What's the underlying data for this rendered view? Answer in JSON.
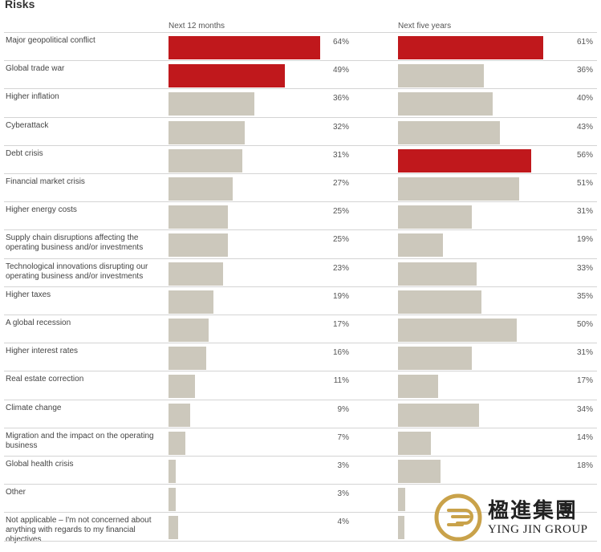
{
  "header": {
    "title": "Risks",
    "col_short": "Next 12 months",
    "col_long": "Next five years"
  },
  "chart_data": {
    "type": "bar",
    "title": "Risks",
    "categories": [
      "Major geopolitical conflict",
      "Global trade war",
      "Higher inflation",
      "Cyberattack",
      "Debt crisis",
      "Financial market crisis",
      "Higher energy costs",
      "Supply chain disruptions affecting the operating business and/or investments",
      "Technological innovations disrupting our operating business and/or investments",
      "Higher taxes",
      "A global recession",
      "Higher interest rates",
      "Real estate correction",
      "Climate change",
      "Migration and the impact on the operating business",
      "Global health crisis",
      "Other",
      "Not applicable – I'm not concerned about anything with regards to my financial objectives"
    ],
    "series": [
      {
        "name": "Next 12 months",
        "values": [
          64,
          49,
          36,
          32,
          31,
          27,
          25,
          25,
          23,
          19,
          17,
          16,
          11,
          9,
          7,
          3,
          3,
          4
        ],
        "labels": [
          "64%",
          "49%",
          "36%",
          "32%",
          "31%",
          "27%",
          "25%",
          "25%",
          "23%",
          "19%",
          "17%",
          "16%",
          "11%",
          "9%",
          "7%",
          "3%",
          "3%",
          "4%"
        ],
        "highlighted": [
          0,
          1
        ]
      },
      {
        "name": "Next five years",
        "values": [
          61,
          36,
          40,
          43,
          56,
          51,
          31,
          19,
          33,
          35,
          50,
          31,
          17,
          34,
          14,
          18,
          3,
          1
        ],
        "labels": [
          "61%",
          "36%",
          "40%",
          "43%",
          "56%",
          "51%",
          "31%",
          "19%",
          "33%",
          "35%",
          "50%",
          "31%",
          "17%",
          "34%",
          "14%",
          "18%",
          "",
          ""
        ],
        "highlighted": [
          0,
          4
        ]
      }
    ],
    "xlim": [
      0,
      100
    ],
    "colors": {
      "highlight": "#c0181c",
      "default": "#ccc8bc"
    }
  },
  "logo": {
    "name_cn": "楹進集團",
    "name_en": "YING JIN GROUP"
  }
}
